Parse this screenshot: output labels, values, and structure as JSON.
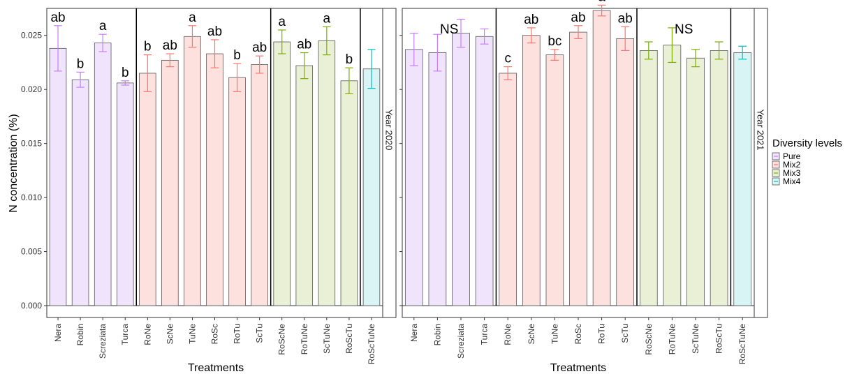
{
  "chart_data": {
    "type": "bar",
    "xlabel": "Treatments",
    "ylabel": "N concentration (%)",
    "ylim": [
      0,
      0.0275
    ],
    "yticks": [
      "0.000",
      "0.005",
      "0.010",
      "0.015",
      "0.020",
      "0.025"
    ],
    "categories": [
      "Nera",
      "Robin",
      "Screziata",
      "Turca",
      "RoNe",
      "ScNe",
      "TuNe",
      "RoSc",
      "RoTu",
      "ScTu",
      "RoScNe",
      "RoTuNe",
      "ScTuNe",
      "RoScTu",
      "RoScTuNe"
    ],
    "groups": [
      "Pure",
      "Pure",
      "Pure",
      "Pure",
      "Mix2",
      "Mix2",
      "Mix2",
      "Mix2",
      "Mix2",
      "Mix2",
      "Mix3",
      "Mix3",
      "Mix3",
      "Mix3",
      "Mix4"
    ],
    "legend": {
      "title": "Diversity levels",
      "position": "right",
      "entries": [
        {
          "name": "Pure",
          "fill": "#f0e4fc",
          "line": "#c77cff"
        },
        {
          "name": "Mix2",
          "fill": "#fde1de",
          "line": "#f8766d"
        },
        {
          "name": "Mix3",
          "fill": "#e9f0d6",
          "line": "#7cae00"
        },
        {
          "name": "Mix4",
          "fill": "#d9f4f4",
          "line": "#00bfc4"
        }
      ]
    },
    "panels": [
      {
        "strip": "Year 2020",
        "values": [
          0.0238,
          0.0209,
          0.0243,
          0.0206,
          0.0215,
          0.0227,
          0.0249,
          0.0233,
          0.0211,
          0.0223,
          0.0244,
          0.0222,
          0.0245,
          0.0208,
          0.0219
        ],
        "errors": [
          0.0021,
          0.0007,
          0.0008,
          0.0002,
          0.0017,
          0.0006,
          0.001,
          0.0013,
          0.0013,
          0.0008,
          0.0011,
          0.0012,
          0.0013,
          0.0012,
          0.0018
        ],
        "group_labels": [
          {
            "text": "ab",
            "index": 0
          },
          {
            "text": "b",
            "index": 1
          },
          {
            "text": "a",
            "index": 2
          },
          {
            "text": "b",
            "index": 3
          },
          {
            "text": "b",
            "index": 4
          },
          {
            "text": "ab",
            "index": 5
          },
          {
            "text": "a",
            "index": 6
          },
          {
            "text": "ab",
            "index": 7
          },
          {
            "text": "b",
            "index": 8
          },
          {
            "text": "ab",
            "index": 9
          },
          {
            "text": "a",
            "index": 10
          },
          {
            "text": "ab",
            "index": 11
          },
          {
            "text": "a",
            "index": 12
          },
          {
            "text": "b",
            "index": 13
          }
        ]
      },
      {
        "strip": "Year 2021",
        "values": [
          0.0237,
          0.0234,
          0.0252,
          0.0249,
          0.0215,
          0.025,
          0.0232,
          0.0253,
          0.0273,
          0.0247,
          0.0236,
          0.0241,
          0.0229,
          0.0236,
          0.0234
        ],
        "errors": [
          0.0015,
          0.0017,
          0.0013,
          0.0007,
          0.0006,
          0.0007,
          0.0005,
          0.0006,
          0.0005,
          0.0011,
          0.0008,
          0.0016,
          0.0008,
          0.0008,
          0.0006
        ],
        "group_labels": [
          {
            "text": "NS",
            "index": 1.5
          },
          {
            "text": "c",
            "index": 4
          },
          {
            "text": "ab",
            "index": 5
          },
          {
            "text": "bc",
            "index": 6
          },
          {
            "text": "ab",
            "index": 7
          },
          {
            "text": "a",
            "index": 8
          },
          {
            "text": "ab",
            "index": 9
          },
          {
            "text": "NS",
            "index": 11.5
          }
        ]
      }
    ]
  }
}
